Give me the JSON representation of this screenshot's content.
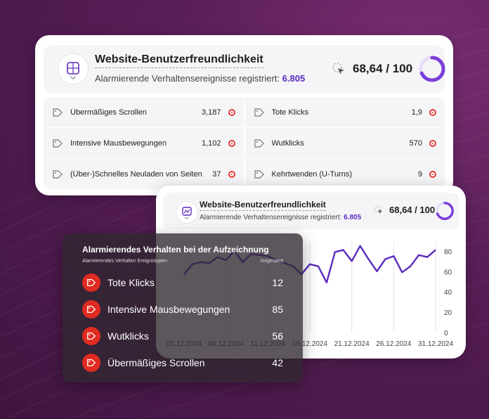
{
  "colors": {
    "accent": "#5b2bbf",
    "alert": "#e53935",
    "line": "#5b2bbf"
  },
  "card1": {
    "title": "Website-Benutzerfreundlichkeit",
    "subtitle_prefix": "Alarmierende Verhaltensereignisse registriert:",
    "subtitle_count": "6.805",
    "score": "68,64 / 100",
    "score_fraction": 0.6864,
    "metrics": [
      {
        "label": "Übermäßiges Scrollen",
        "value": "3,187",
        "icon": "tag-icon"
      },
      {
        "label": "Tote Klicks",
        "value": "1,9",
        "icon": "tag-icon"
      },
      {
        "label": "Intensive Mausbewegungen",
        "value": "1,102",
        "icon": "tag-icon"
      },
      {
        "label": "Wutklicks",
        "value": "570",
        "icon": "tag-icon"
      },
      {
        "label": "(Über-)Schnelles Neuladen von Seiten",
        "value": "37",
        "icon": "tag-icon"
      },
      {
        "label": "Kehrtwenden (U-Turns)",
        "value": "9",
        "icon": "tag-icon"
      }
    ]
  },
  "card2": {
    "title": "Website-Benutzerfreundlichkeit",
    "subtitle_prefix": "Alarmierende Verhaltensereignisse registriert:",
    "subtitle_count": "6.805",
    "score": "68,64 / 100",
    "score_fraction": 0.6864
  },
  "chart_data": {
    "type": "line",
    "title": "",
    "x_ticks": [
      "01.12.2024",
      "06.12.2024",
      "11.12.2024",
      "16.12.2024",
      "21.12.2024",
      "26.12.2024",
      "31.12.2024"
    ],
    "y_ticks": [
      "0",
      "20",
      "40",
      "60",
      "80"
    ],
    "ylim": [
      0,
      90
    ],
    "grid": "vertical",
    "series": [
      {
        "values": [
          58,
          68,
          70,
          69,
          75,
          72,
          81,
          70,
          78,
          77,
          76,
          72,
          69,
          66,
          58,
          68,
          66,
          50,
          80,
          82,
          71,
          86,
          73,
          61,
          73,
          76,
          60,
          66,
          77,
          75,
          82
        ]
      }
    ]
  },
  "panel": {
    "title": "Alarmierendes Verhalten bei der Aufzeichnung",
    "col_left": "Alarmierendes Verhalten Ereignistypen",
    "col_right": "Insgesamt",
    "rows": [
      {
        "label": "Tote Klicks",
        "value": "12"
      },
      {
        "label": "Intensive Mausbewegungen",
        "value": "85"
      },
      {
        "label": "Wutklicks",
        "value": "56"
      },
      {
        "label": "Übermäßiges Scrollen",
        "value": "42"
      }
    ]
  }
}
